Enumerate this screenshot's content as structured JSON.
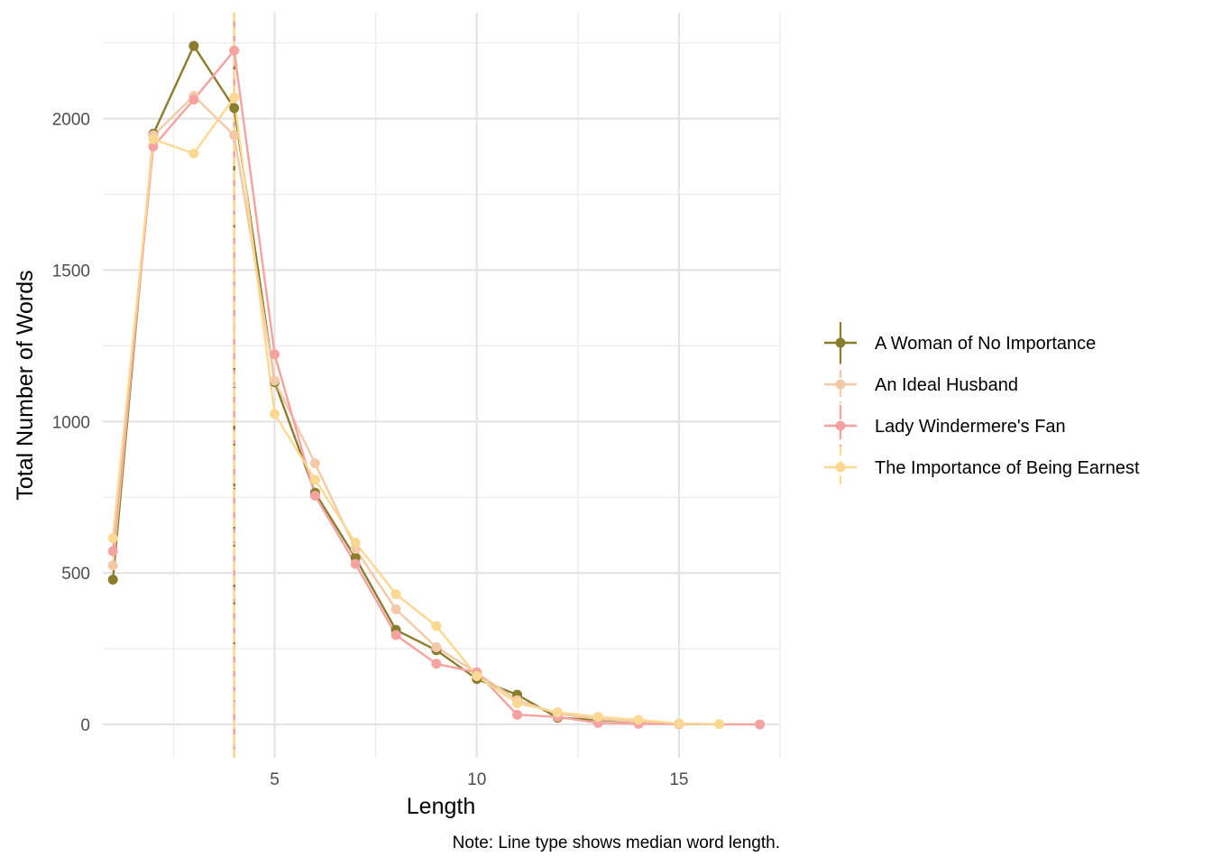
{
  "chart_data": {
    "type": "line",
    "xlabel": "Length",
    "ylabel": "Total Number of Words",
    "caption": "Note: Line type shows median word length.",
    "xlim": [
      0.75,
      17.5
    ],
    "ylim": [
      -110,
      2350
    ],
    "x_ticks": [
      5,
      10,
      15
    ],
    "x_tick_labels": [
      "5",
      "10",
      "15"
    ],
    "x_minor_ticks": [
      2.5,
      7.5,
      12.5,
      17.5
    ],
    "y_ticks": [
      0,
      500,
      1000,
      1500,
      2000
    ],
    "y_tick_labels": [
      "0",
      "500",
      "1000",
      "1500",
      "2000"
    ],
    "y_minor_ticks": [
      250,
      750,
      1250,
      1750,
      2250
    ],
    "grid": true,
    "legend_position": "right",
    "series": [
      {
        "name": "A Woman of No Importance",
        "color": "#8B7D2E",
        "dash": "solid",
        "median": 4,
        "x": [
          1,
          2,
          3,
          4,
          5,
          6,
          7,
          8,
          9,
          10,
          11,
          12,
          13,
          14,
          15
        ],
        "y": [
          478,
          1950,
          2240,
          2035,
          1130,
          765,
          550,
          312,
          245,
          150,
          98,
          22,
          15,
          8,
          2
        ]
      },
      {
        "name": "An Ideal Husband",
        "color": "#F3C9A8",
        "dash": "dotdash",
        "median": 4,
        "x": [
          1,
          2,
          3,
          4,
          5,
          6,
          7,
          8,
          9,
          10,
          11,
          12,
          13,
          14,
          15
        ],
        "y": [
          525,
          1945,
          2075,
          1945,
          1135,
          862,
          580,
          380,
          255,
          170,
          80,
          35,
          18,
          8,
          2
        ]
      },
      {
        "name": "Lady Windermere's Fan",
        "color": "#F4A3A0",
        "dash": "longdash",
        "median": 4,
        "x": [
          1,
          2,
          3,
          4,
          5,
          6,
          7,
          8,
          9,
          10,
          11,
          12,
          13,
          14,
          15,
          17
        ],
        "y": [
          572,
          1908,
          2063,
          2225,
          1222,
          755,
          530,
          295,
          200,
          172,
          32,
          25,
          5,
          2,
          1,
          0
        ]
      },
      {
        "name": "The Importance of Being Earnest",
        "color": "#FCD993",
        "dash": "dashed",
        "median": 4,
        "x": [
          1,
          2,
          3,
          4,
          5,
          6,
          7,
          8,
          9,
          10,
          11,
          12,
          13,
          14,
          15,
          16
        ],
        "y": [
          615,
          1932,
          1885,
          2070,
          1025,
          808,
          600,
          430,
          325,
          160,
          70,
          40,
          25,
          15,
          3,
          1
        ]
      }
    ]
  }
}
